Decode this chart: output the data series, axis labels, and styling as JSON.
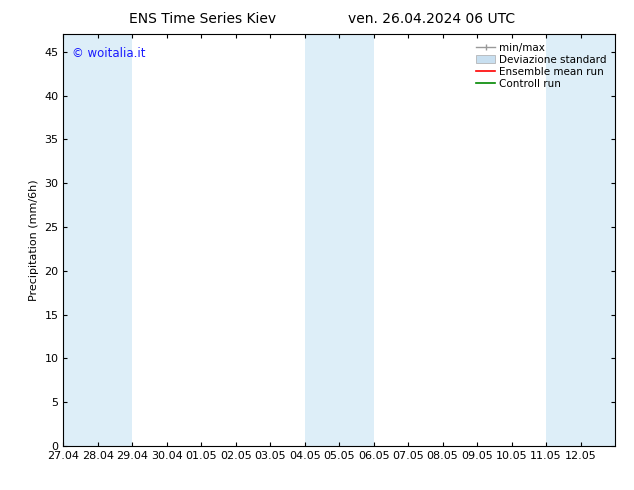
{
  "title_left": "ENS Time Series Kiev",
  "title_right": "ven. 26.04.2024 06 UTC",
  "ylabel": "Precipitation (mm/6h)",
  "watermark": "© woitalia.it",
  "watermark_color": "#1a1aff",
  "xlim_start": 0,
  "xlim_end": 16,
  "ylim": [
    0,
    47
  ],
  "yticks": [
    0,
    5,
    10,
    15,
    20,
    25,
    30,
    35,
    40,
    45
  ],
  "xtick_labels": [
    "27.04",
    "28.04",
    "29.04",
    "30.04",
    "01.05",
    "02.05",
    "03.05",
    "04.05",
    "05.05",
    "06.05",
    "07.05",
    "08.05",
    "09.05",
    "10.05",
    "11.05",
    "12.05"
  ],
  "shaded_bands": [
    {
      "x_start": 0,
      "x_end": 2,
      "color": "#ddeef8"
    },
    {
      "x_start": 7,
      "x_end": 9,
      "color": "#ddeef8"
    },
    {
      "x_start": 14,
      "x_end": 16,
      "color": "#ddeef8"
    }
  ],
  "legend_entries": [
    {
      "label": "min/max",
      "color": "#999999",
      "type": "errorbar"
    },
    {
      "label": "Deviazione standard",
      "color": "#c8dff0",
      "type": "fillbetween"
    },
    {
      "label": "Ensemble mean run",
      "color": "#ff0000",
      "type": "line"
    },
    {
      "label": "Controll run",
      "color": "#008800",
      "type": "line"
    }
  ],
  "bg_color": "#ffffff",
  "plot_bg_color": "#ffffff",
  "font_size": 8,
  "title_font_size": 10
}
